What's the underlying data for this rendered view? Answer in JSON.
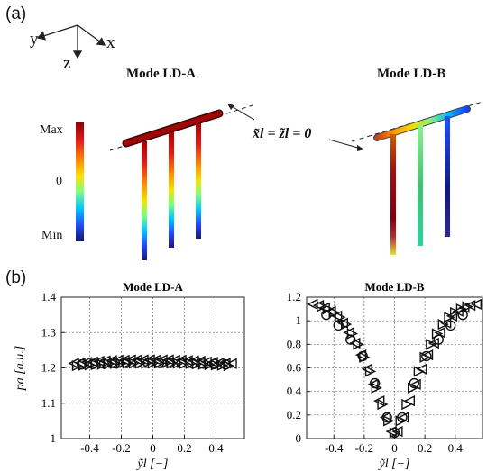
{
  "panel_a": {
    "label": "(a)",
    "axes": {
      "y": "y",
      "x": "x",
      "z": "z"
    },
    "mode_a_title": "Mode LD-A",
    "mode_b_title": "Mode LD-B",
    "colorbar": {
      "max": "Max",
      "zero": "0",
      "min": "Min"
    },
    "equation": "x̃l = z̃l = 0"
  },
  "panel_b": {
    "label": "(b)"
  },
  "chart_data": [
    {
      "type": "scatter",
      "title": "Mode LD-A",
      "xlabel": "ỹl [−]",
      "ylabel": "pa [a.u.]",
      "xlim": [
        -0.58,
        0.58
      ],
      "ylim": [
        1.0,
        1.4
      ],
      "xticks": [
        -0.4,
        -0.2,
        0,
        0.2,
        0.4
      ],
      "xtick_labels": [
        "-0.4",
        "-0.2",
        "0",
        "0.2",
        "0.4"
      ],
      "yticks": [
        1.0,
        1.1,
        1.2,
        1.3,
        1.4
      ],
      "ytick_labels": [
        "1",
        "1.1",
        "1.2",
        "1.3",
        "1.4"
      ],
      "grid": true,
      "series": [
        {
          "marker": "triangle-left",
          "x": [
            -0.5,
            -0.46,
            -0.42,
            -0.38,
            -0.34,
            -0.3,
            -0.26,
            -0.22,
            -0.18,
            -0.14,
            -0.1,
            -0.06,
            -0.02,
            0.02,
            0.06,
            0.1,
            0.14,
            0.18,
            0.22,
            0.26,
            0.3,
            0.34,
            0.38,
            0.42,
            0.46,
            0.5
          ],
          "y": [
            1.213,
            1.214,
            1.216,
            1.217,
            1.219,
            1.22,
            1.221,
            1.222,
            1.222,
            1.223,
            1.223,
            1.223,
            1.223,
            1.223,
            1.223,
            1.223,
            1.222,
            1.222,
            1.221,
            1.22,
            1.219,
            1.217,
            1.216,
            1.214,
            1.213,
            1.212
          ]
        },
        {
          "marker": "triangle-right",
          "x": [
            -0.48,
            -0.44,
            -0.4,
            -0.36,
            -0.32,
            -0.28,
            -0.24,
            -0.2,
            -0.16,
            -0.12,
            -0.08,
            -0.04,
            0.0,
            0.04,
            0.08,
            0.12,
            0.16,
            0.2,
            0.24,
            0.28,
            0.32,
            0.36,
            0.4,
            0.44,
            0.48
          ],
          "y": [
            1.206,
            1.207,
            1.208,
            1.209,
            1.21,
            1.211,
            1.212,
            1.212,
            1.213,
            1.213,
            1.213,
            1.213,
            1.213,
            1.213,
            1.213,
            1.213,
            1.213,
            1.212,
            1.212,
            1.211,
            1.21,
            1.209,
            1.208,
            1.207,
            1.206
          ]
        },
        {
          "marker": "circle",
          "x": [
            -0.45,
            -0.38,
            -0.31,
            -0.24,
            -0.17,
            -0.1,
            -0.03,
            0.04,
            0.11,
            0.18,
            0.25,
            0.32,
            0.39,
            0.46
          ],
          "y": [
            1.21,
            1.211,
            1.212,
            1.213,
            1.214,
            1.214,
            1.214,
            1.214,
            1.214,
            1.214,
            1.213,
            1.212,
            1.211,
            1.21
          ]
        }
      ]
    },
    {
      "type": "scatter",
      "title": "Mode LD-B",
      "xlabel": "ỹl [−]",
      "ylabel": "",
      "xlim": [
        -0.58,
        0.58
      ],
      "ylim": [
        0,
        1.2
      ],
      "xticks": [
        -0.4,
        -0.2,
        0,
        0.2,
        0.4
      ],
      "xtick_labels": [
        "-0.4",
        "-0.2",
        "0",
        "0.2",
        "0.4"
      ],
      "yticks": [
        0,
        0.2,
        0.4,
        0.6,
        0.8,
        1.0,
        1.2
      ],
      "ytick_labels": [
        "0",
        "0.2",
        "0.4",
        "0.6",
        "0.8",
        "1",
        "1.2"
      ],
      "grid": true,
      "series": [
        {
          "marker": "triangle-left",
          "x": [
            -0.54,
            -0.5,
            -0.46,
            -0.42,
            -0.38,
            -0.34,
            -0.3,
            -0.26,
            -0.22,
            -0.18,
            -0.14,
            -0.1,
            -0.06,
            -0.02,
            0.02,
            0.06,
            0.1,
            0.14,
            0.18,
            0.22,
            0.26,
            0.3,
            0.34,
            0.38,
            0.42,
            0.46,
            0.5,
            0.54
          ],
          "y": [
            1.14,
            1.13,
            1.11,
            1.08,
            1.04,
            0.98,
            0.9,
            0.81,
            0.71,
            0.59,
            0.46,
            0.32,
            0.18,
            0.06,
            0.06,
            0.18,
            0.32,
            0.46,
            0.59,
            0.71,
            0.81,
            0.9,
            0.98,
            1.04,
            1.08,
            1.11,
            1.13,
            1.14
          ]
        },
        {
          "marker": "triangle-right",
          "x": [
            -0.48,
            -0.44,
            -0.4,
            -0.36,
            -0.32,
            -0.28,
            -0.24,
            -0.2,
            -0.16,
            -0.12,
            -0.08,
            -0.04,
            0.0,
            0.04,
            0.08,
            0.12,
            0.16,
            0.2,
            0.24,
            0.28,
            0.32,
            0.36,
            0.4,
            0.44,
            0.48
          ],
          "y": [
            1.12,
            1.1,
            1.07,
            1.03,
            0.97,
            0.89,
            0.8,
            0.69,
            0.57,
            0.43,
            0.29,
            0.15,
            0.05,
            0.15,
            0.29,
            0.43,
            0.57,
            0.69,
            0.8,
            0.89,
            0.97,
            1.03,
            1.07,
            1.1,
            1.12
          ]
        },
        {
          "marker": "circle",
          "x": [
            -0.45,
            -0.37,
            -0.29,
            -0.21,
            -0.13,
            -0.05,
            0.0,
            0.05,
            0.13,
            0.21,
            0.29,
            0.37,
            0.45
          ],
          "y": [
            1.05,
            0.96,
            0.84,
            0.7,
            0.47,
            0.18,
            0.05,
            0.18,
            0.47,
            0.7,
            0.84,
            0.96,
            1.05
          ]
        }
      ]
    }
  ]
}
